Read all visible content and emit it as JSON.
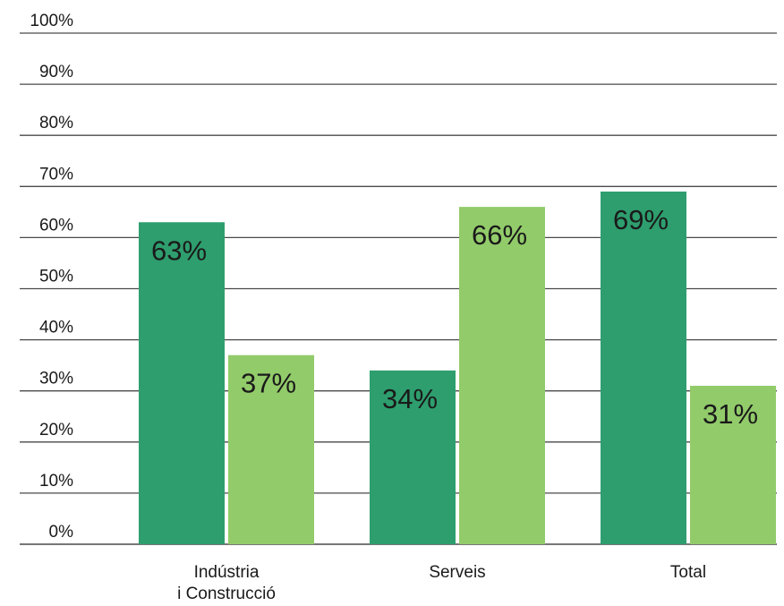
{
  "chart_data": {
    "type": "bar",
    "categories": [
      [
        "Indústria",
        "i Construcció"
      ],
      [
        "Serveis"
      ],
      [
        "Total"
      ]
    ],
    "series": [
      {
        "values": [
          63,
          34,
          69
        ],
        "labels": [
          "63%",
          "34%",
          "69%"
        ],
        "color": "#2e9e6e"
      },
      {
        "values": [
          37,
          66,
          31
        ],
        "labels": [
          "37%",
          "66%",
          "31%"
        ],
        "color": "#92cb6a"
      }
    ],
    "ylim": [
      0,
      100
    ],
    "yticks": [
      0,
      10,
      20,
      30,
      40,
      50,
      60,
      70,
      80,
      90,
      100
    ],
    "ytick_labels": [
      "0%",
      "10%",
      "20%",
      "30%",
      "40%",
      "50%",
      "60%",
      "70%",
      "80%",
      "90%",
      "100%"
    ],
    "grid": true,
    "legend": "none"
  }
}
